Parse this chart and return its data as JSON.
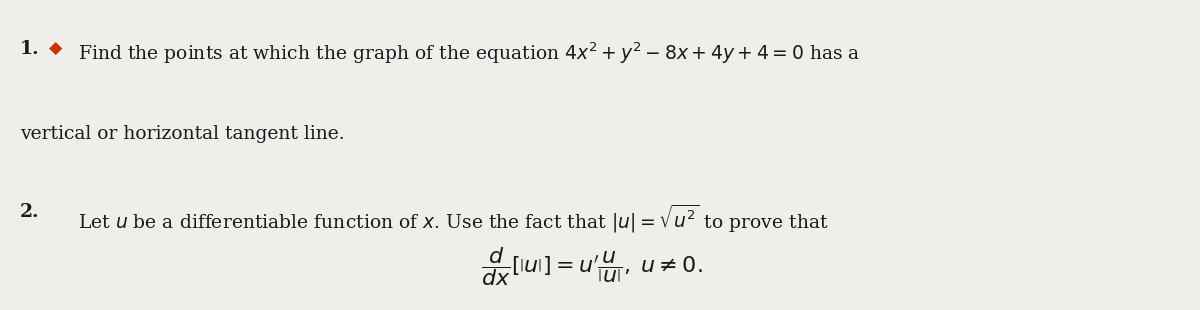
{
  "background_color": "#f0eeeb",
  "text_color": "#1a1a1a",
  "figsize": [
    12.0,
    3.1
  ],
  "dpi": 100,
  "line1_num": "1.",
  "line1_bullet_color": "#cc3300",
  "line1_text": " Find the points at which the graph of the equation $4x^2 + y^2 - 8x + 4y + 4 = 0$ has a",
  "line2_text": "vertical or horizontal tangent line.",
  "line3_num": "2.",
  "line3_text": "  Let $u$ be a differentiable function of $x$. Use the fact that $|u| = \\sqrt{u^2}$ to prove that",
  "line4_formula": "$\\dfrac{d}{dx}\\left[|u|\\right] = u'\\dfrac{u}{|u|},\\, u \\neq 0.$",
  "font_size_main": 13.5,
  "font_size_formula": 15
}
